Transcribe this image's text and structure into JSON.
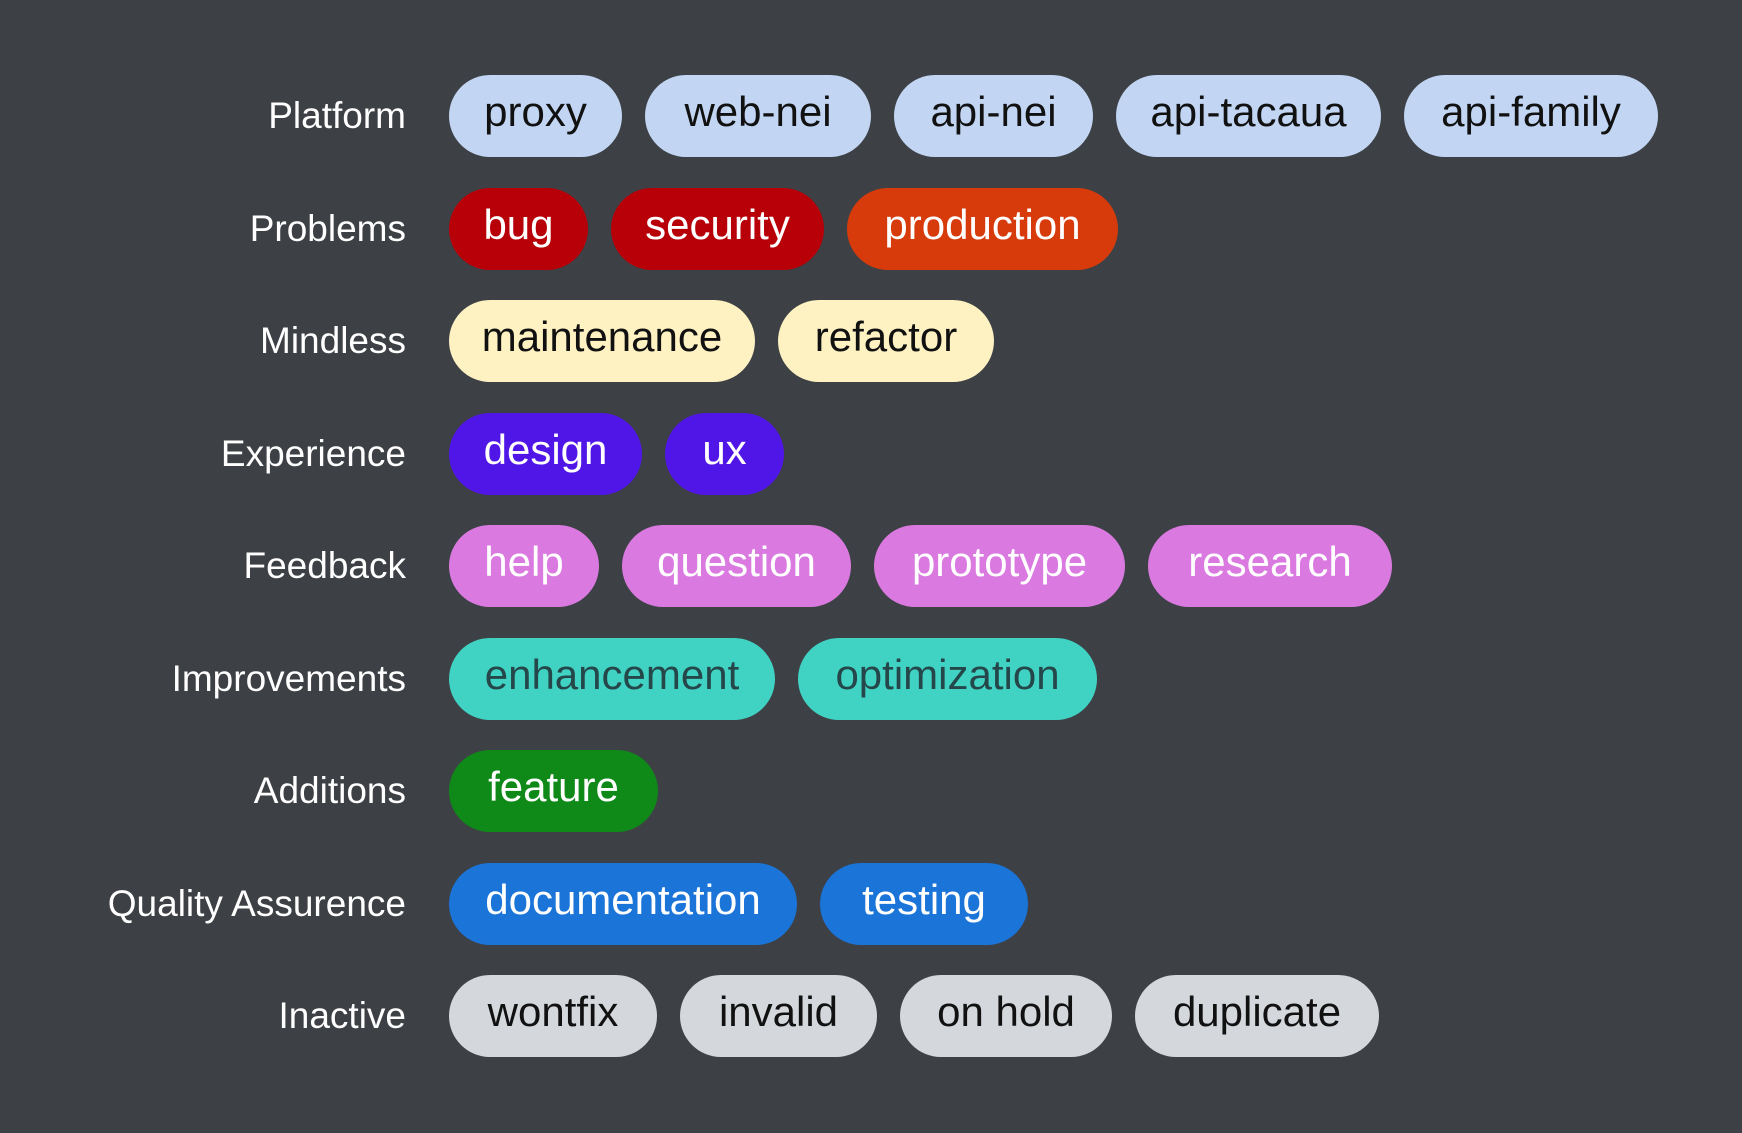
{
  "groups": [
    {
      "label": "Platform",
      "bg": "#c2d6f3",
      "fg": "#111111",
      "tags": [
        "proxy",
        "web-nei",
        "api-nei",
        "api-tacaua",
        "api-family"
      ]
    },
    {
      "label": "Problems",
      "tags": [
        "bug",
        "security",
        "production"
      ],
      "tag_colors": [
        {
          "bg": "#b70008",
          "fg": "#ffffff"
        },
        {
          "bg": "#b70008",
          "fg": "#ffffff"
        },
        {
          "bg": "#d83b0b",
          "fg": "#ffffff"
        }
      ],
      "bg": "#b70008",
      "fg": "#ffffff"
    },
    {
      "label": "Mindless",
      "bg": "#fef1c2",
      "fg": "#111111",
      "tags": [
        "maintenance",
        "refactor"
      ]
    },
    {
      "label": "Experience",
      "bg": "#5016e8",
      "fg": "#ffffff",
      "tags": [
        "design",
        "ux"
      ]
    },
    {
      "label": "Feedback",
      "bg": "#da7ae1",
      "fg": "#ffffff",
      "tags": [
        "help",
        "question",
        "prototype",
        "research"
      ]
    },
    {
      "label": "Improvements",
      "bg": "#40d3c4",
      "fg": "#25474a",
      "tags": [
        "enhancement",
        "optimization"
      ]
    },
    {
      "label": "Additions",
      "bg": "#0f8a19",
      "fg": "#ffffff",
      "tags": [
        "feature"
      ]
    },
    {
      "label": "Quality Assurence",
      "bg": "#1b74d8",
      "fg": "#ffffff",
      "tags": [
        "documentation",
        "testing"
      ]
    },
    {
      "label": "Inactive",
      "bg": "#d4d8dd",
      "fg": "#111111",
      "tags": [
        "wontfix",
        "invalid",
        "on hold",
        "duplicate"
      ]
    }
  ]
}
